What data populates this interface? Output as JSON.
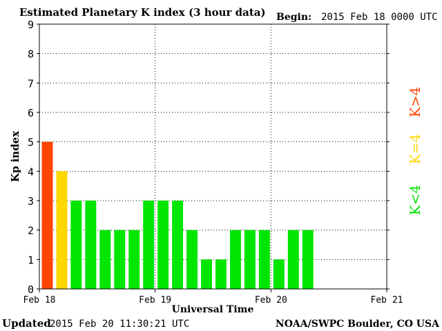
{
  "header": {
    "title": "Estimated Planetary K index (3 hour data)",
    "begin_label": "Begin:",
    "begin_value": "2015 Feb 18 0000 UTC"
  },
  "footer": {
    "updated_label": "Updated",
    "updated_value": "2015 Feb 20 11:30:21 UTC",
    "source": "NOAA/SWPC Boulder, CO USA"
  },
  "colors": {
    "high": "#ff4500",
    "equal": "#ffd700",
    "low": "#00e600"
  },
  "chart_data": {
    "type": "bar",
    "title": "Estimated Planetary K index (3 hour data)",
    "xlabel": "Universal Time",
    "ylabel": "Kp index",
    "ylim": [
      0,
      9
    ],
    "yticks": [
      0,
      1,
      2,
      3,
      4,
      5,
      6,
      7,
      8,
      9
    ],
    "xticks": [
      "Feb 18",
      "Feb 19",
      "Feb 20",
      "Feb 21"
    ],
    "grid": true,
    "bins_per_day": 8,
    "values": [
      5,
      4,
      3,
      3,
      2,
      2,
      2,
      3,
      3,
      3,
      2,
      1,
      1,
      2,
      2,
      2,
      1,
      2,
      2
    ],
    "legend": [
      {
        "label": "K>4",
        "color": "#ff4500"
      },
      {
        "label": "K=4",
        "color": "#ffd700"
      },
      {
        "label": "K<4",
        "color": "#00e600"
      }
    ]
  }
}
